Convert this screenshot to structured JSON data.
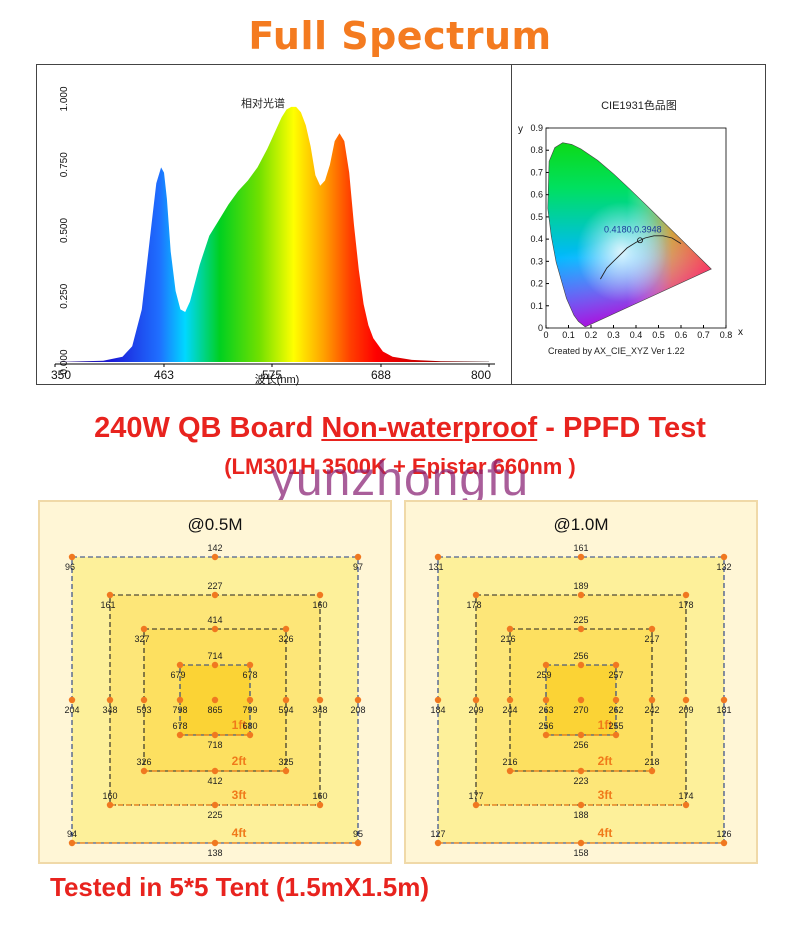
{
  "header": {
    "title": "Full Spectrum"
  },
  "spectrum": {
    "title": "相对光谱",
    "xlabel": "波长(nm)",
    "xticks": [
      "350",
      "463",
      "575",
      "688",
      "800"
    ],
    "yticks": [
      "0.000",
      "0.250",
      "0.500",
      "0.750",
      "1.000"
    ]
  },
  "cie": {
    "title": "CIE1931色品图",
    "ylabel": "y",
    "xlabel": "x",
    "coord_label": "0.4180,0.3948",
    "credit": "Created by AX_CIE_XYZ Ver 1.22",
    "xticks": [
      "0",
      "0.1",
      "0.2",
      "0.3",
      "0.4",
      "0.5",
      "0.6",
      "0.7",
      "0.8"
    ],
    "yticks": [
      "0",
      "0.1",
      "0.2",
      "0.3",
      "0.4",
      "0.5",
      "0.6",
      "0.7",
      "0.8",
      "0.9"
    ]
  },
  "ppfd": {
    "headline_prefix": "240W QB Board ",
    "headline_underlined": "Non-waterproof",
    "headline_suffix": " - PPFD Test",
    "subline": "(LM301H 3500K + Epistar 660nm )",
    "watermark": "yunzhongfu",
    "footer": "Tested in 5*5 Tent (1.5mX1.5m)"
  },
  "chart_data": [
    {
      "type": "area",
      "title": "相对光谱",
      "xlabel": "波长(nm)",
      "xlim": [
        350,
        800
      ],
      "ylim": [
        0,
        1
      ],
      "x": [
        350,
        400,
        420,
        430,
        440,
        450,
        455,
        460,
        463,
        466,
        470,
        475,
        480,
        485,
        490,
        500,
        510,
        520,
        530,
        540,
        550,
        560,
        570,
        575,
        580,
        585,
        590,
        595,
        600,
        605,
        610,
        615,
        620,
        625,
        630,
        635,
        640,
        645,
        650,
        655,
        660,
        665,
        670,
        675,
        680,
        690,
        700,
        720,
        750,
        800
      ],
      "values": [
        0,
        0.005,
        0.02,
        0.06,
        0.2,
        0.52,
        0.68,
        0.74,
        0.72,
        0.62,
        0.42,
        0.27,
        0.2,
        0.19,
        0.23,
        0.37,
        0.48,
        0.54,
        0.6,
        0.65,
        0.69,
        0.74,
        0.81,
        0.85,
        0.89,
        0.93,
        0.96,
        0.97,
        0.97,
        0.95,
        0.9,
        0.82,
        0.71,
        0.67,
        0.69,
        0.75,
        0.84,
        0.87,
        0.84,
        0.72,
        0.52,
        0.35,
        0.22,
        0.14,
        0.09,
        0.04,
        0.02,
        0.008,
        0.003,
        0.001
      ]
    },
    {
      "type": "scatter",
      "title": "CIE1931色品图",
      "xlabel": "x",
      "ylabel": "y",
      "xlim": [
        0,
        0.8
      ],
      "ylim": [
        0,
        0.9
      ],
      "locus": [
        [
          0.1741,
          0.005
        ],
        [
          0.144,
          0.0297
        ],
        [
          0.1241,
          0.0578
        ],
        [
          0.0913,
          0.1327
        ],
        [
          0.0454,
          0.295
        ],
        [
          0.0235,
          0.4127
        ],
        [
          0.0082,
          0.5384
        ],
        [
          0.0139,
          0.7502
        ],
        [
          0.0389,
          0.812
        ],
        [
          0.0743,
          0.8338
        ],
        [
          0.1142,
          0.8262
        ],
        [
          0.1547,
          0.8059
        ],
        [
          0.2296,
          0.7543
        ],
        [
          0.3016,
          0.6923
        ],
        [
          0.3731,
          0.6245
        ],
        [
          0.4441,
          0.5547
        ],
        [
          0.5125,
          0.4866
        ],
        [
          0.5752,
          0.4242
        ],
        [
          0.627,
          0.3725
        ],
        [
          0.6658,
          0.334
        ],
        [
          0.6915,
          0.3083
        ],
        [
          0.7347,
          0.2653
        ]
      ],
      "planckian": [
        [
          0.242,
          0.22
        ],
        [
          0.27,
          0.27
        ],
        [
          0.3,
          0.3
        ],
        [
          0.33,
          0.33
        ],
        [
          0.36,
          0.36
        ],
        [
          0.4,
          0.385
        ],
        [
          0.44,
          0.405
        ],
        [
          0.48,
          0.415
        ],
        [
          0.52,
          0.415
        ],
        [
          0.56,
          0.405
        ],
        [
          0.6,
          0.38
        ]
      ],
      "point": {
        "x": 0.418,
        "y": 0.3948,
        "label": "0.4180,0.3948"
      }
    },
    {
      "type": "table",
      "title": "@0.5M",
      "rings": [
        {
          "label": "4ft",
          "corners": [
            96,
            97,
            95,
            94
          ],
          "mids": [
            142,
            208,
            138,
            204
          ]
        },
        {
          "label": "3ft",
          "corners": [
            161,
            160,
            160,
            160
          ],
          "mids": [
            227,
            348,
            225,
            348
          ]
        },
        {
          "label": "2ft",
          "corners": [
            327,
            326,
            325,
            326
          ],
          "mids": [
            414,
            594,
            412,
            593
          ]
        },
        {
          "label": "1ft",
          "corners": [
            679,
            678,
            680,
            678
          ],
          "mids": [
            714,
            799,
            718,
            798
          ]
        }
      ],
      "center": 865
    },
    {
      "type": "table",
      "title": "@1.0M",
      "rings": [
        {
          "label": "4ft",
          "corners": [
            131,
            132,
            126,
            127
          ],
          "mids": [
            161,
            181,
            158,
            184
          ]
        },
        {
          "label": "3ft",
          "corners": [
            178,
            178,
            174,
            177
          ],
          "mids": [
            189,
            209,
            188,
            209
          ]
        },
        {
          "label": "2ft",
          "corners": [
            216,
            217,
            218,
            216
          ],
          "mids": [
            225,
            242,
            223,
            244
          ]
        },
        {
          "label": "1ft",
          "corners": [
            259,
            257,
            255,
            256
          ],
          "mids": [
            256,
            262,
            256,
            263
          ]
        }
      ],
      "center": 270
    }
  ]
}
